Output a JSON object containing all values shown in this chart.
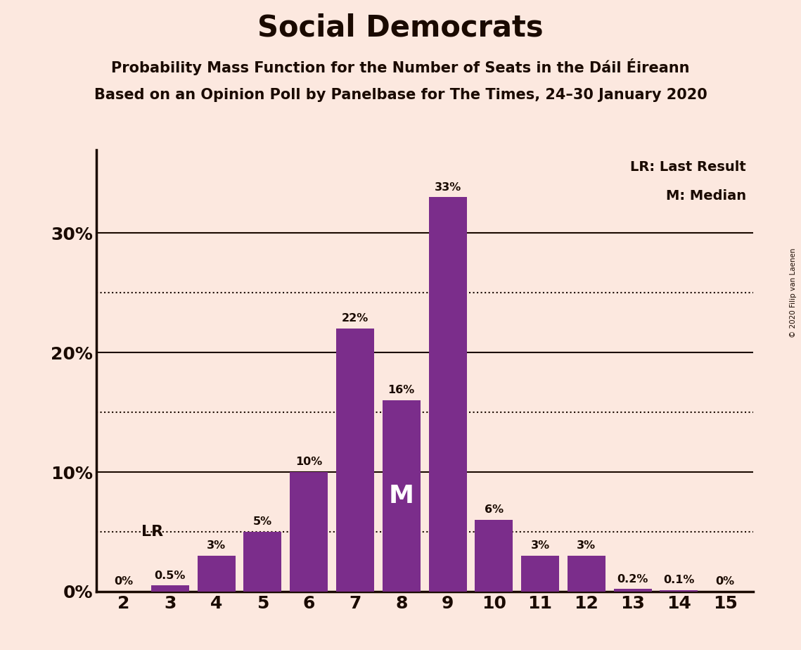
{
  "title": "Social Democrats",
  "subtitle1": "Probability Mass Function for the Number of Seats in the Dáil Éireann",
  "subtitle2": "Based on an Opinion Poll by Panelbase for The Times, 24–30 January 2020",
  "copyright": "© 2020 Filip van Laenen",
  "categories": [
    2,
    3,
    4,
    5,
    6,
    7,
    8,
    9,
    10,
    11,
    12,
    13,
    14,
    15
  ],
  "values": [
    0.0,
    0.5,
    3.0,
    5.0,
    10.0,
    22.0,
    16.0,
    33.0,
    6.0,
    3.0,
    3.0,
    0.2,
    0.1,
    0.0
  ],
  "bar_color": "#7b2d8b",
  "background_color": "#fce8df",
  "text_color": "#1a0a00",
  "bar_labels": [
    "0%",
    "0.5%",
    "3%",
    "5%",
    "10%",
    "22%",
    "16%",
    "33%",
    "6%",
    "3%",
    "3%",
    "0.2%",
    "0.1%",
    "0%"
  ],
  "yticks": [
    0,
    10,
    20,
    30
  ],
  "ytick_labels": [
    "0%",
    "10%",
    "20%",
    "30%"
  ],
  "solid_lines": [
    10,
    20,
    30
  ],
  "dotted_lines": [
    5,
    15,
    25
  ],
  "lr_index": 1,
  "median_index": 6,
  "legend_lr": "LR: Last Result",
  "legend_m": "M: Median",
  "ylim": [
    0,
    37
  ]
}
